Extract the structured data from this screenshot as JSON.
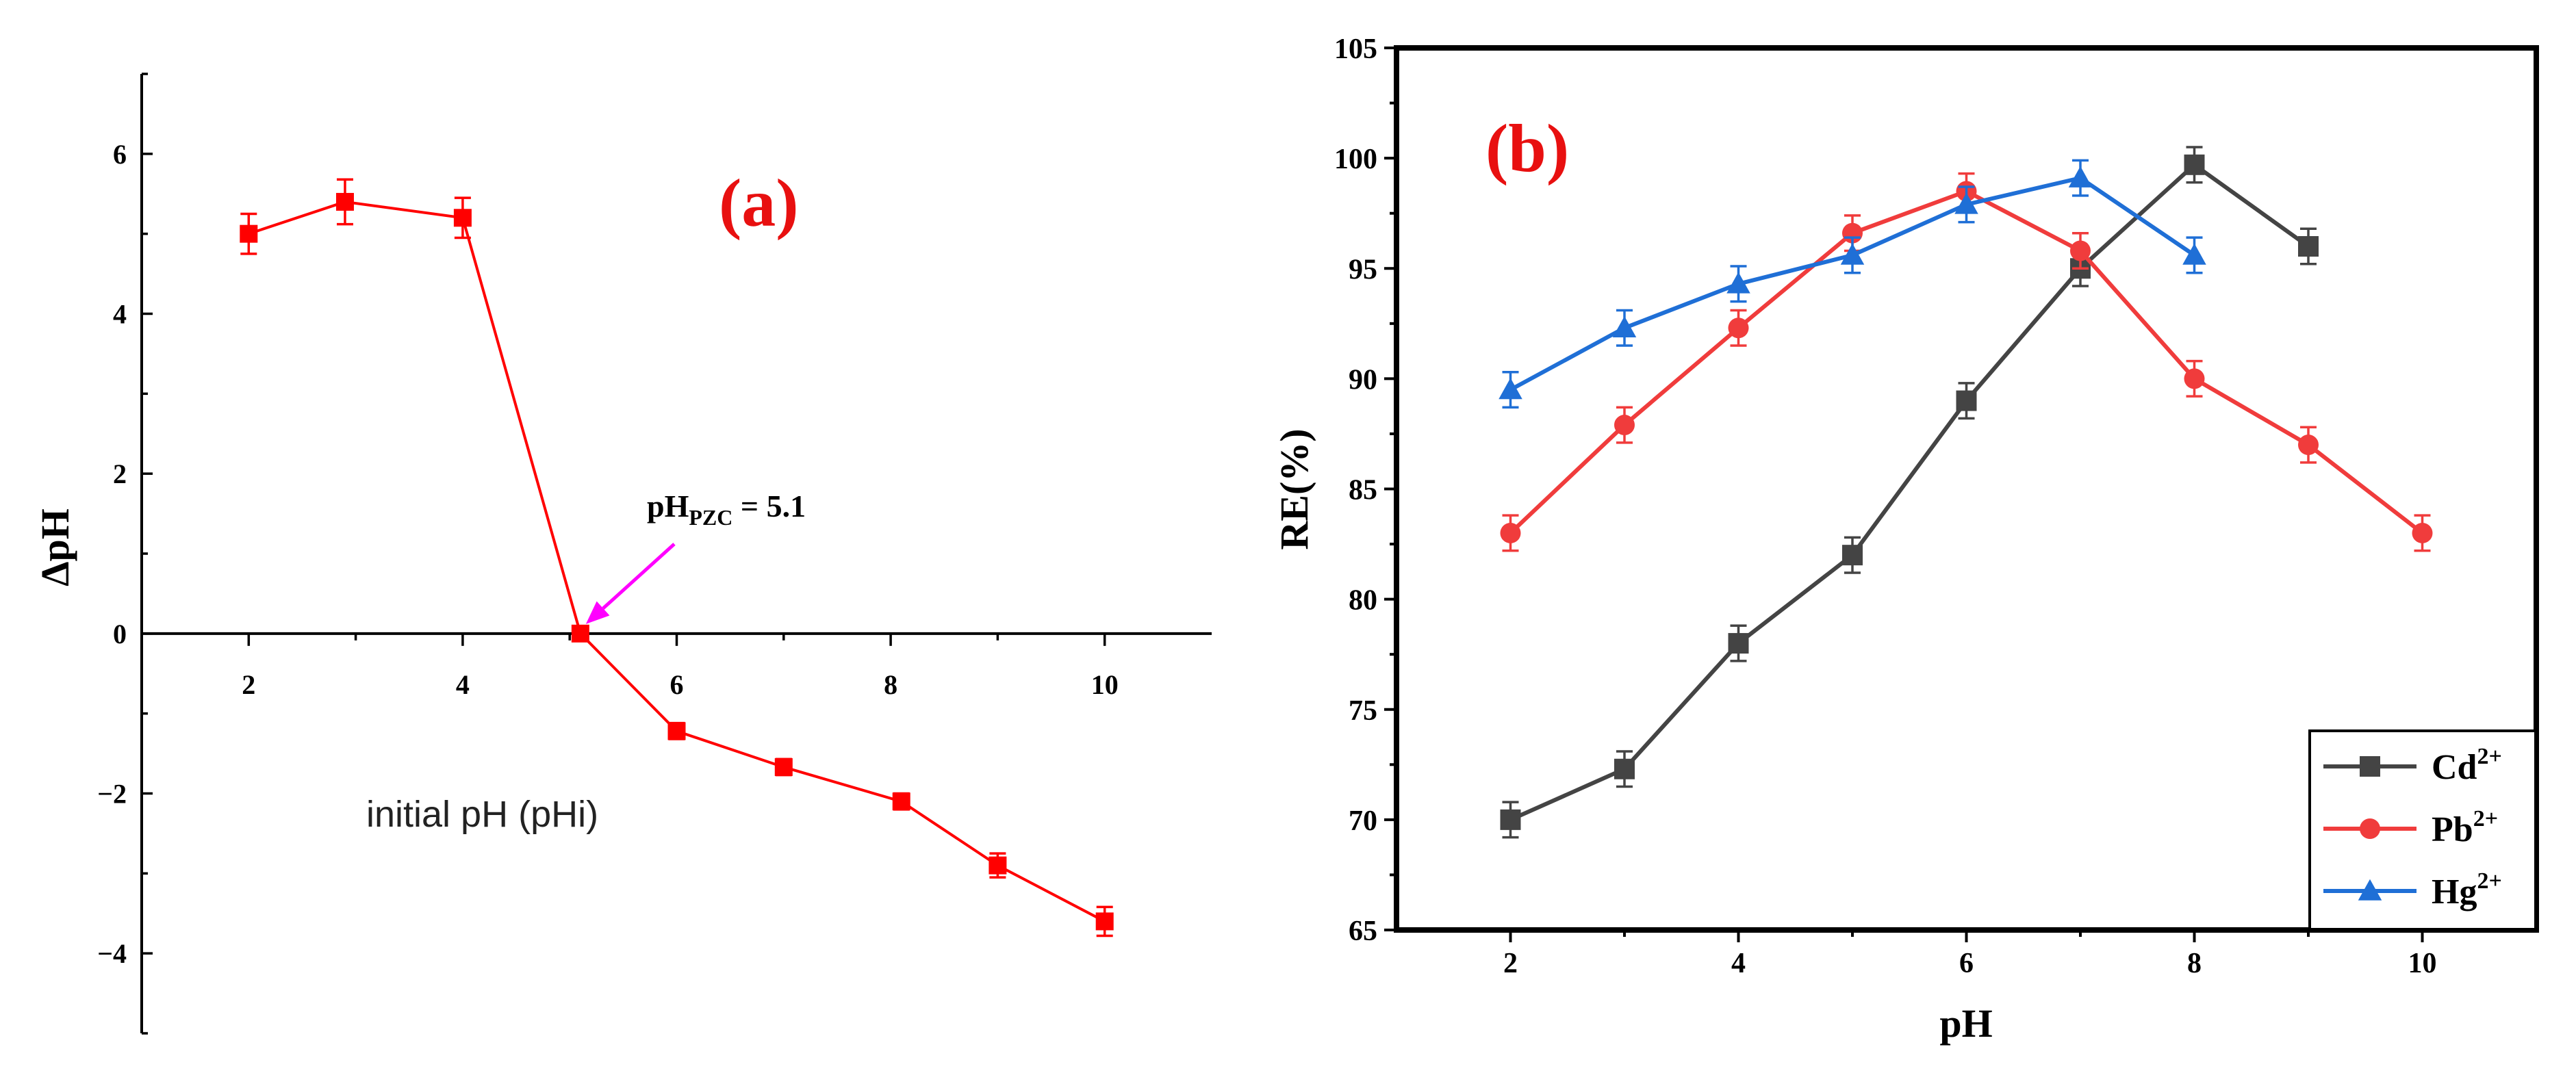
{
  "chart_data": [
    {
      "type": "line",
      "panel_label": "(a)",
      "title": "",
      "xlabel": "initial pH (pHi)",
      "ylabel": "ΔpH",
      "xlim": [
        1,
        11
      ],
      "ylim": [
        -5,
        7
      ],
      "xticks": [
        2,
        4,
        6,
        8,
        10
      ],
      "xticklabels": [
        "2",
        "4",
        "6",
        "8",
        "10"
      ],
      "yticks": [
        -4,
        -2,
        0,
        2,
        4,
        6
      ],
      "yticklabels": [
        "−4",
        "−2",
        "0",
        "2",
        "4",
        "6"
      ],
      "series": [
        {
          "name": "ΔpH",
          "color": "#ff0000",
          "marker": "square",
          "x": [
            2,
            2.9,
            4,
            5.1,
            6,
            7,
            8.1,
            9,
            10
          ],
          "y": [
            5.0,
            5.4,
            5.2,
            0.0,
            -1.22,
            -1.67,
            -2.1,
            -2.9,
            -3.6
          ],
          "error": [
            0.25,
            0.28,
            0.25,
            0.05,
            0.1,
            0.1,
            0.1,
            0.15,
            0.18
          ]
        }
      ],
      "annotation": {
        "prefix": "pH",
        "subscript": "PZC",
        "suffix": " = 5.1",
        "x": 5.1,
        "y": 0,
        "arrow_color": "#ff00ff"
      }
    },
    {
      "type": "line",
      "panel_label": "(b)",
      "title": "",
      "xlabel": "pH",
      "ylabel": "RE(%)",
      "xlim": [
        1,
        11
      ],
      "ylim": [
        65,
        105
      ],
      "xticks": [
        2,
        4,
        6,
        8,
        10
      ],
      "xticklabels": [
        "2",
        "4",
        "6",
        "8",
        "10"
      ],
      "yticks": [
        65,
        70,
        75,
        80,
        85,
        90,
        95,
        100,
        105
      ],
      "yticklabels": [
        "65",
        "70",
        "75",
        "80",
        "85",
        "90",
        "95",
        "100",
        "105"
      ],
      "legend_position": "bottom-right",
      "series": [
        {
          "name": "Cd",
          "superscript": "2+",
          "color": "#444444",
          "marker": "square",
          "x": [
            2,
            3,
            4,
            5,
            6,
            7,
            8,
            9
          ],
          "y": [
            70,
            72.3,
            78,
            82,
            89,
            95,
            99.7,
            96
          ],
          "error": [
            0.8,
            0.8,
            0.8,
            0.8,
            0.8,
            0.8,
            0.8,
            0.8
          ]
        },
        {
          "name": "Pb",
          "superscript": "2+",
          "color": "#f03c3c",
          "marker": "circle",
          "x": [
            2,
            3,
            4,
            5,
            6,
            7,
            8,
            9,
            10
          ],
          "y": [
            83,
            87.9,
            92.3,
            96.6,
            98.5,
            95.8,
            90,
            87,
            83
          ],
          "error": [
            0.8,
            0.8,
            0.8,
            0.8,
            0.8,
            0.8,
            0.8,
            0.8,
            0.8
          ]
        },
        {
          "name": "Hg",
          "superscript": "2+",
          "color": "#1f6fd6",
          "marker": "triangle",
          "x": [
            2,
            3,
            4,
            5,
            6,
            7,
            8
          ],
          "y": [
            89.5,
            92.3,
            94.3,
            95.6,
            97.9,
            99.1,
            95.6
          ],
          "error": [
            0.8,
            0.8,
            0.8,
            0.8,
            0.8,
            0.8,
            0.8
          ]
        }
      ]
    }
  ]
}
